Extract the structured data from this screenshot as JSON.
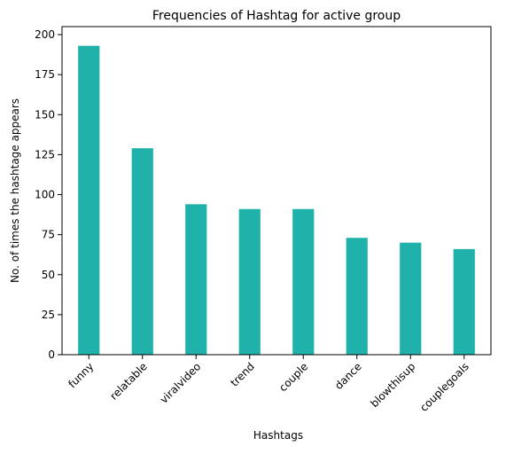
{
  "chart_data": {
    "type": "bar",
    "title": "Frequencies of Hashtag for active group",
    "xlabel": "Hashtags",
    "ylabel": "No. of times the hashtage appears",
    "categories": [
      "funny",
      "relatable",
      "viralvideo",
      "trend",
      "couple",
      "dance",
      "blowthisup",
      "couplegoals"
    ],
    "values": [
      193,
      129,
      94,
      91,
      91,
      73,
      70,
      66
    ],
    "ylim": [
      0,
      205
    ],
    "yticks": [
      0,
      25,
      50,
      75,
      100,
      125,
      150,
      175,
      200
    ],
    "bar_color": "#20b2aa",
    "grid": false,
    "legend": "none"
  }
}
